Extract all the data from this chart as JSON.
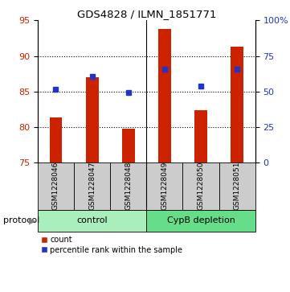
{
  "title": "GDS4828 / ILMN_1851771",
  "samples": [
    "GSM1228046",
    "GSM1228047",
    "GSM1228048",
    "GSM1228049",
    "GSM1228050",
    "GSM1228051"
  ],
  "groups": [
    "control",
    "control",
    "control",
    "CypB depletion",
    "CypB depletion",
    "CypB depletion"
  ],
  "red_values": [
    81.3,
    87.0,
    79.7,
    93.8,
    82.3,
    91.3
  ],
  "blue_values": [
    85.3,
    87.1,
    84.8,
    88.1,
    85.8,
    88.1
  ],
  "red_base": 75,
  "ylim_left": [
    75,
    95
  ],
  "ylim_right": [
    0,
    100
  ],
  "yticks_left": [
    75,
    80,
    85,
    90,
    95
  ],
  "yticks_right": [
    0,
    25,
    50,
    75,
    100
  ],
  "ytick_labels_right": [
    "0",
    "25",
    "50",
    "75",
    "100%"
  ],
  "red_color": "#CC2200",
  "blue_color": "#2233CC",
  "control_color": "#AAEEBB",
  "cyp_color": "#66DD88",
  "group_bg_color": "#CCCCCC",
  "bar_width": 0.35,
  "grid_color": "#000000",
  "protocol_label": "protocol",
  "legend_count": "count",
  "legend_pct": "percentile rank within the sample"
}
